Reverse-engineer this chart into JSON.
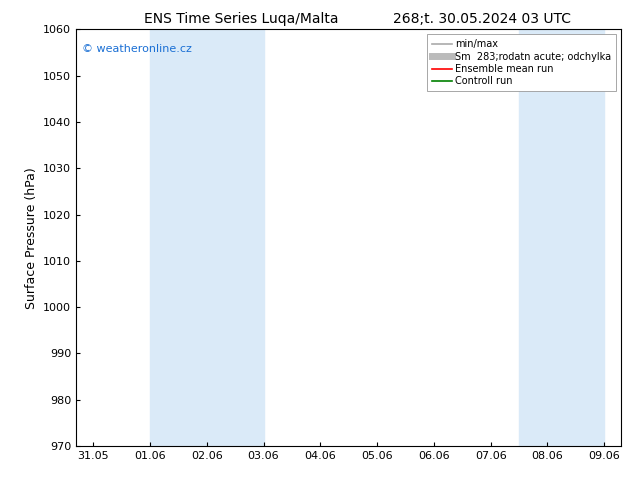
{
  "title_left": "ENS Time Series Luqa/Malta",
  "title_right": "268;t. 30.05.2024 03 UTC",
  "ylabel": "Surface Pressure (hPa)",
  "ylim": [
    970,
    1060
  ],
  "yticks": [
    970,
    980,
    990,
    1000,
    1010,
    1020,
    1030,
    1040,
    1050,
    1060
  ],
  "xtick_labels": [
    "31.05",
    "01.06",
    "02.06",
    "03.06",
    "04.06",
    "05.06",
    "06.06",
    "07.06",
    "08.06",
    "09.06"
  ],
  "xtick_positions": [
    0,
    1,
    2,
    3,
    4,
    5,
    6,
    7,
    8,
    9
  ],
  "shaded_regions": [
    {
      "x_start": 1.0,
      "x_end": 3.0,
      "color": "#daeaf8"
    },
    {
      "x_start": 7.5,
      "x_end": 9.0,
      "color": "#daeaf8"
    }
  ],
  "watermark_text": "© weatheronline.cz",
  "watermark_color": "#1a6fd4",
  "legend_entries": [
    {
      "label": "min/max",
      "color": "#aaaaaa",
      "lw": 1.2,
      "ls": "-"
    },
    {
      "label": "Sm  283;rodatn acute; odchylka",
      "color": "#bbbbbb",
      "lw": 5,
      "ls": "-"
    },
    {
      "label": "Ensemble mean run",
      "color": "#ff0000",
      "lw": 1.2,
      "ls": "-"
    },
    {
      "label": "Controll run",
      "color": "#008000",
      "lw": 1.2,
      "ls": "-"
    }
  ],
  "bg_color": "#ffffff",
  "title_fontsize": 10,
  "tick_label_fontsize": 8,
  "ylabel_fontsize": 9,
  "watermark_fontsize": 8,
  "legend_fontsize": 7
}
